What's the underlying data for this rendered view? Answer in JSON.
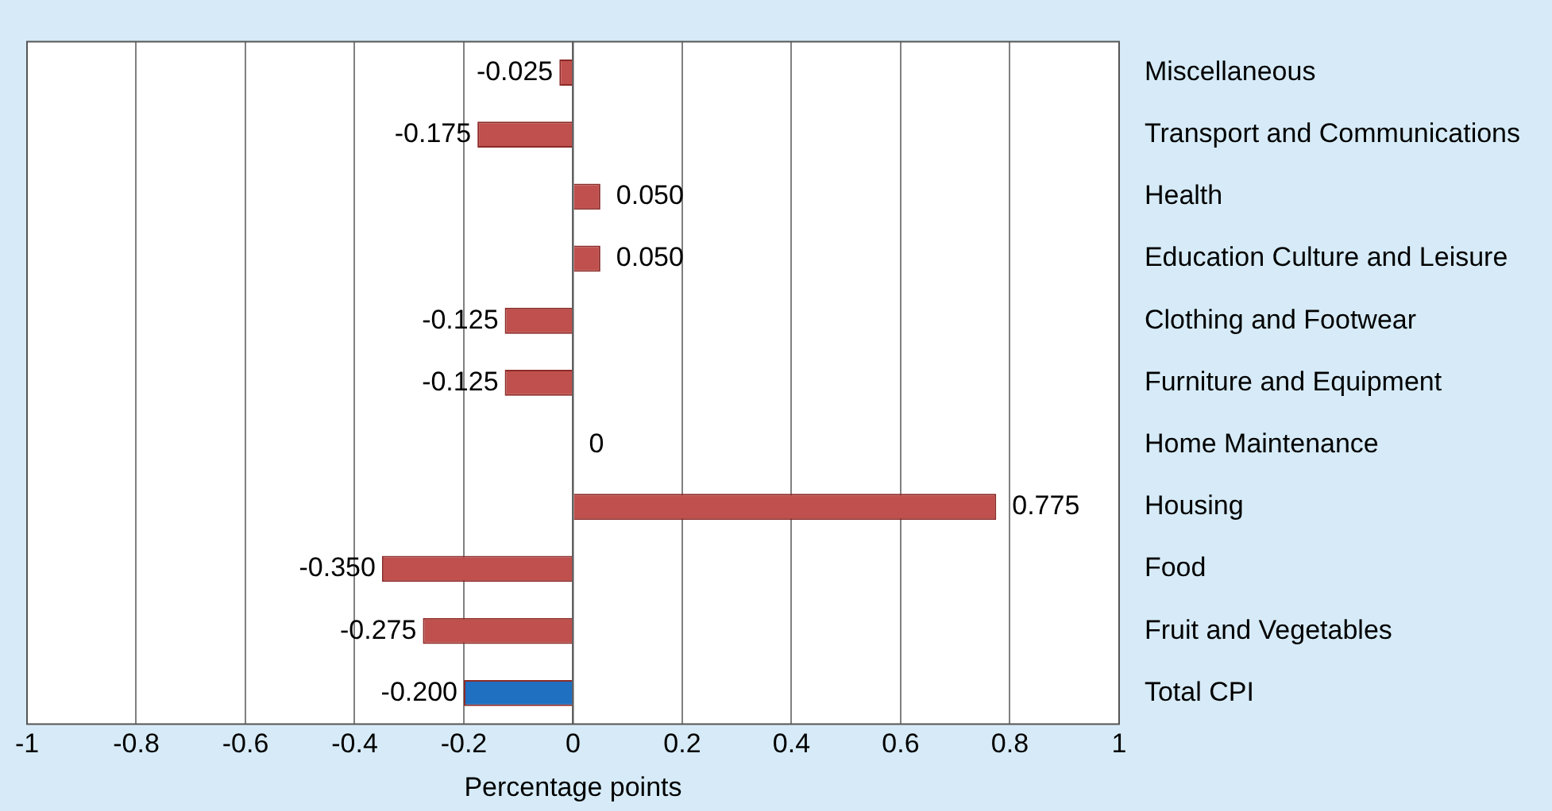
{
  "chart_data": {
    "type": "bar",
    "orientation": "horizontal",
    "xlabel": "Percentage points",
    "categories": [
      "Miscellaneous",
      "Transport and Communications",
      "Health",
      "Education Culture and Leisure",
      "Clothing and Footwear",
      "Furniture and Equipment",
      "Home Maintenance",
      "Housing",
      "Food",
      "Fruit and Vegetables",
      "Total CPI"
    ],
    "values": [
      -0.025,
      -0.175,
      0.05,
      0.05,
      -0.125,
      -0.125,
      0,
      0.775,
      -0.35,
      -0.275,
      -0.2
    ],
    "colors": [
      "#c0504d",
      "#c0504d",
      "#c0504d",
      "#c0504d",
      "#c0504d",
      "#c0504d",
      "#c0504d",
      "#c0504d",
      "#c0504d",
      "#c0504d",
      "#1f70c1"
    ],
    "value_labels": [
      "-0.025",
      "-0.175",
      "0.050",
      "0.050",
      "-0.125",
      "-0.125",
      "0",
      "0.775",
      "-0.350",
      "-0.275",
      "-0.200"
    ],
    "xlim": [
      -1,
      1
    ],
    "xticks": [
      -1,
      -0.8,
      -0.6,
      -0.4,
      -0.2,
      0,
      0.2,
      0.4,
      0.6,
      0.8,
      1
    ],
    "grid": "x",
    "legend": false
  }
}
